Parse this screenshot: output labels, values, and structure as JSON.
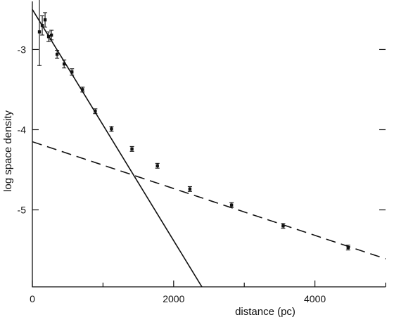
{
  "chart_data": {
    "type": "scatter",
    "xlabel": "distance (pc)",
    "ylabel": "log space density",
    "xlim": [
      0,
      5000
    ],
    "ylim": [
      -5.96,
      -2.4
    ],
    "x_ticks": [
      0,
      2000,
      4000
    ],
    "y_ticks": [
      -3,
      -4,
      -5
    ],
    "grid": false,
    "series": [
      {
        "style": "points-with-error-bars",
        "points": [
          {
            "x": 100,
            "y": -2.78,
            "err": 0.42
          },
          {
            "x": 140,
            "y": -2.7,
            "err": 0.12
          },
          {
            "x": 180,
            "y": -2.63,
            "err": 0.09
          },
          {
            "x": 230,
            "y": -2.84,
            "err": 0.06
          },
          {
            "x": 270,
            "y": -2.82,
            "err": 0.06
          },
          {
            "x": 350,
            "y": -3.06,
            "err": 0.05
          },
          {
            "x": 450,
            "y": -3.18,
            "err": 0.05
          },
          {
            "x": 560,
            "y": -3.28,
            "err": 0.04
          },
          {
            "x": 710,
            "y": -3.5,
            "err": 0.03
          },
          {
            "x": 890,
            "y": -3.77,
            "err": 0.03
          },
          {
            "x": 1120,
            "y": -3.99,
            "err": 0.03
          },
          {
            "x": 1410,
            "y": -4.24,
            "err": 0.03
          },
          {
            "x": 1770,
            "y": -4.45,
            "err": 0.03
          },
          {
            "x": 2230,
            "y": -4.74,
            "err": 0.03
          },
          {
            "x": 2820,
            "y": -4.94,
            "err": 0.03
          },
          {
            "x": 3550,
            "y": -5.2,
            "err": 0.03
          },
          {
            "x": 4470,
            "y": -5.47,
            "err": 0.03
          }
        ]
      },
      {
        "style": "solid-line",
        "x": [
          0,
          2400
        ],
        "y": [
          -2.5,
          -5.96
        ]
      },
      {
        "style": "dashed-line",
        "x": [
          0,
          5000
        ],
        "y": [
          -4.15,
          -5.61
        ]
      }
    ]
  }
}
